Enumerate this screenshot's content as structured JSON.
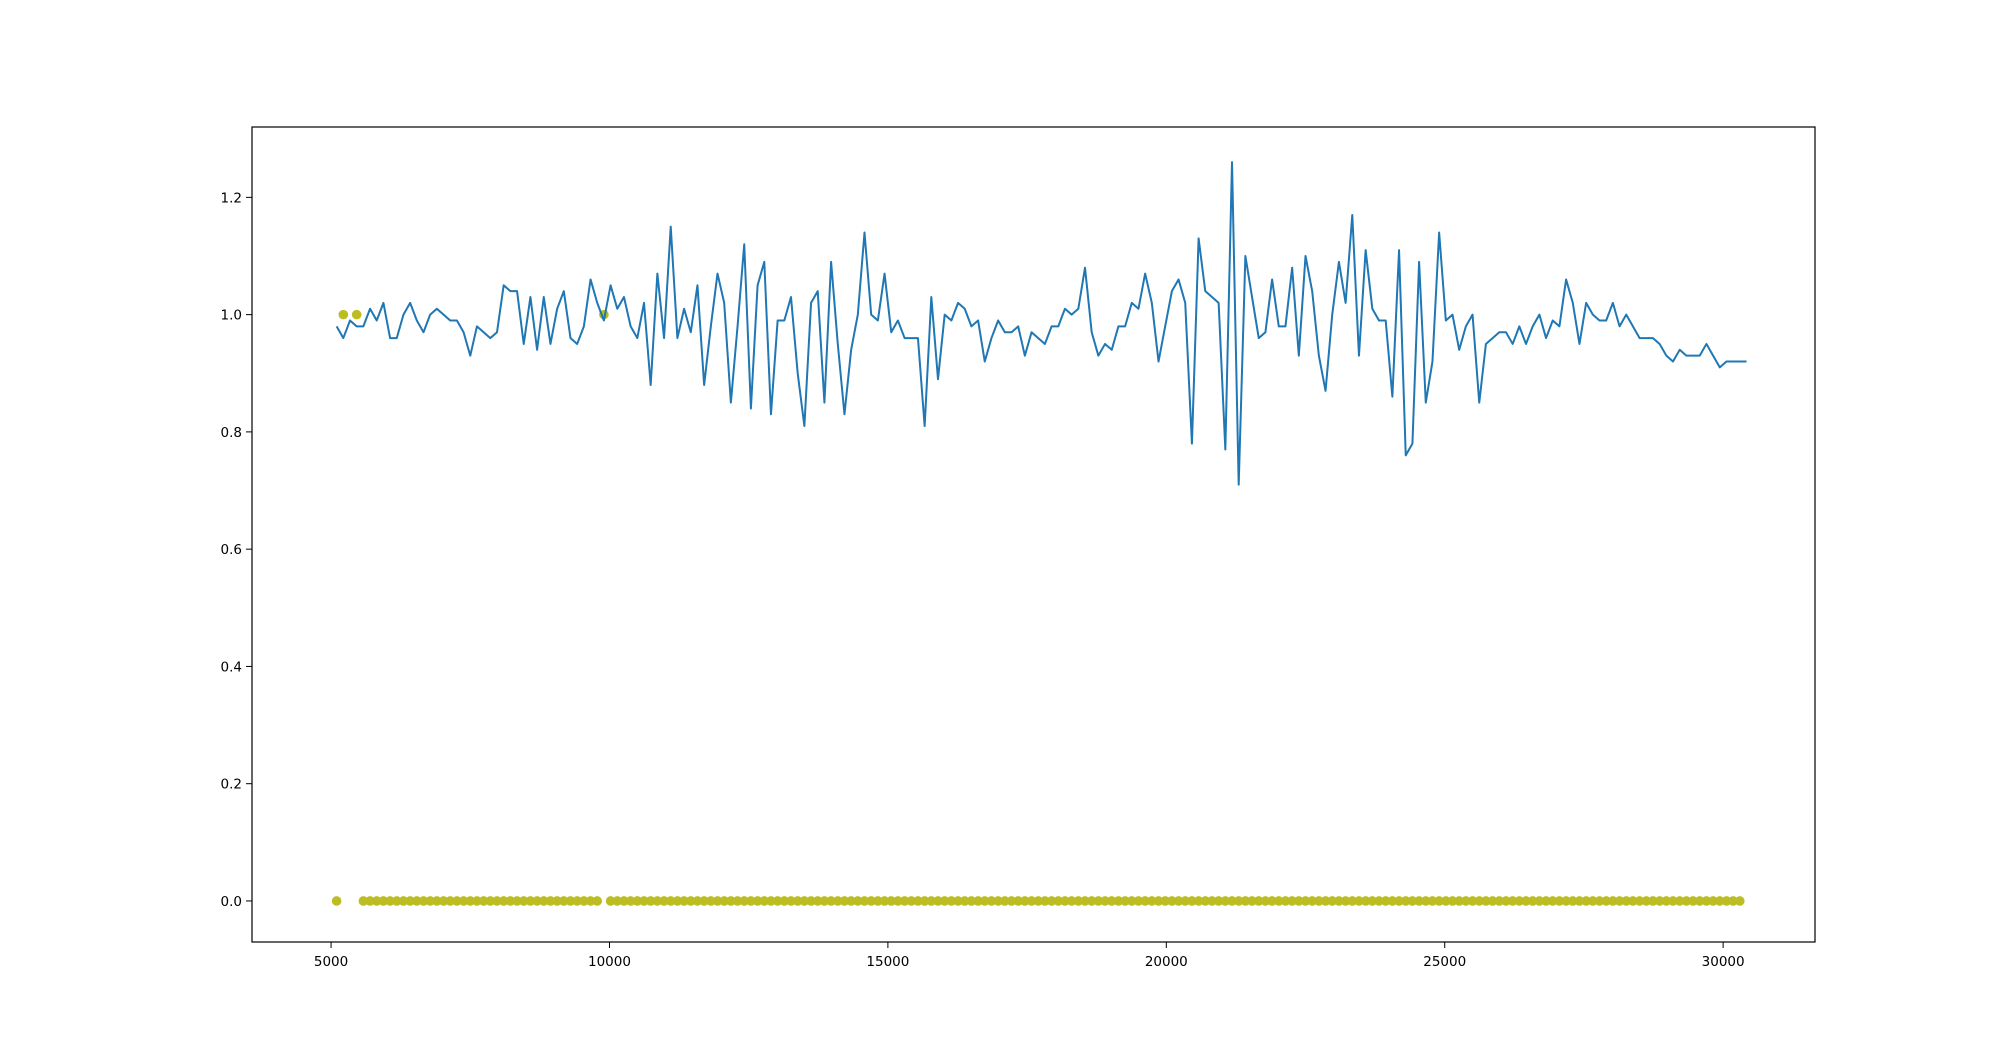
{
  "chart_data": {
    "type": "line",
    "title": "",
    "xlabel": "",
    "ylabel": "",
    "xlim": [
      3580,
      31650
    ],
    "ylim": [
      -0.07,
      1.32
    ],
    "grid": false,
    "xticks": [
      5000,
      10000,
      15000,
      20000,
      25000,
      30000
    ],
    "yticks": [
      0.0,
      0.2,
      0.4,
      0.6,
      0.8,
      1.0,
      1.2
    ],
    "xtick_labels": [
      "5000",
      "10000",
      "15000",
      "20000",
      "25000",
      "30000"
    ],
    "ytick_labels": [
      "0.0",
      "0.2",
      "0.4",
      "0.6",
      "0.8",
      "1.0",
      "1.2"
    ],
    "colors": {
      "line": "#1f77b4",
      "scatter": "#bcbd22"
    },
    "series": [
      {
        "type": "line",
        "x_start": 5100,
        "x_step": 120,
        "values": [
          0.98,
          0.96,
          0.99,
          0.98,
          0.98,
          1.01,
          0.99,
          1.02,
          0.96,
          0.96,
          1.0,
          1.02,
          0.99,
          0.97,
          1.0,
          1.01,
          1.0,
          0.99,
          0.99,
          0.97,
          0.93,
          0.98,
          0.97,
          0.96,
          0.97,
          1.05,
          1.04,
          1.04,
          0.95,
          1.03,
          0.94,
          1.03,
          0.95,
          1.01,
          1.04,
          0.96,
          0.95,
          0.98,
          1.06,
          1.02,
          0.99,
          1.05,
          1.01,
          1.03,
          0.98,
          0.96,
          1.02,
          0.88,
          1.07,
          0.96,
          1.15,
          0.96,
          1.01,
          0.97,
          1.05,
          0.88,
          0.98,
          1.07,
          1.02,
          0.85,
          0.98,
          1.12,
          0.84,
          1.05,
          1.09,
          0.83,
          0.99,
          0.99,
          1.03,
          0.9,
          0.81,
          1.02,
          1.04,
          0.85,
          1.09,
          0.95,
          0.83,
          0.94,
          1.0,
          1.14,
          1.0,
          0.99,
          1.07,
          0.97,
          0.99,
          0.96,
          0.96,
          0.96,
          0.81,
          1.03,
          0.89,
          1.0,
          0.99,
          1.02,
          1.01,
          0.98,
          0.99,
          0.92,
          0.96,
          0.99,
          0.97,
          0.97,
          0.98,
          0.93,
          0.97,
          0.96,
          0.95,
          0.98,
          0.98,
          1.01,
          1.0,
          1.01,
          1.08,
          0.97,
          0.93,
          0.95,
          0.94,
          0.98,
          0.98,
          1.02,
          1.01,
          1.07,
          1.02,
          0.92,
          0.98,
          1.04,
          1.06,
          1.02,
          0.78,
          1.13,
          1.04,
          1.03,
          1.02,
          0.77,
          1.26,
          0.71,
          1.1,
          1.03,
          0.96,
          0.97,
          1.06,
          0.98,
          0.98,
          1.08,
          0.93,
          1.1,
          1.04,
          0.93,
          0.87,
          1.0,
          1.09,
          1.02,
          1.17,
          0.93,
          1.11,
          1.01,
          0.99,
          0.99,
          0.86,
          1.11,
          0.76,
          0.78,
          1.09,
          0.85,
          0.92,
          1.14,
          0.99,
          1.0,
          0.94,
          0.98,
          1.0,
          0.85,
          0.95,
          0.96,
          0.97,
          0.97,
          0.95,
          0.98,
          0.95,
          0.98,
          1.0,
          0.96,
          0.99,
          0.98,
          1.06,
          1.02,
          0.95,
          1.02,
          1.0,
          0.99,
          0.99,
          1.02,
          0.98,
          1.0,
          0.98,
          0.96,
          0.96,
          0.96,
          0.95,
          0.93,
          0.92,
          0.94,
          0.93,
          0.93,
          0.93,
          0.95,
          0.93,
          0.91,
          0.92,
          0.92,
          0.92,
          0.92
        ]
      },
      {
        "type": "scatter",
        "x_start": 5100,
        "x_step": 120,
        "count": 211,
        "default_value": 0,
        "skip_x": [
          5220,
          5340,
          5460,
          9900
        ],
        "ones_x": [
          5220,
          5460,
          9900
        ]
      }
    ]
  }
}
